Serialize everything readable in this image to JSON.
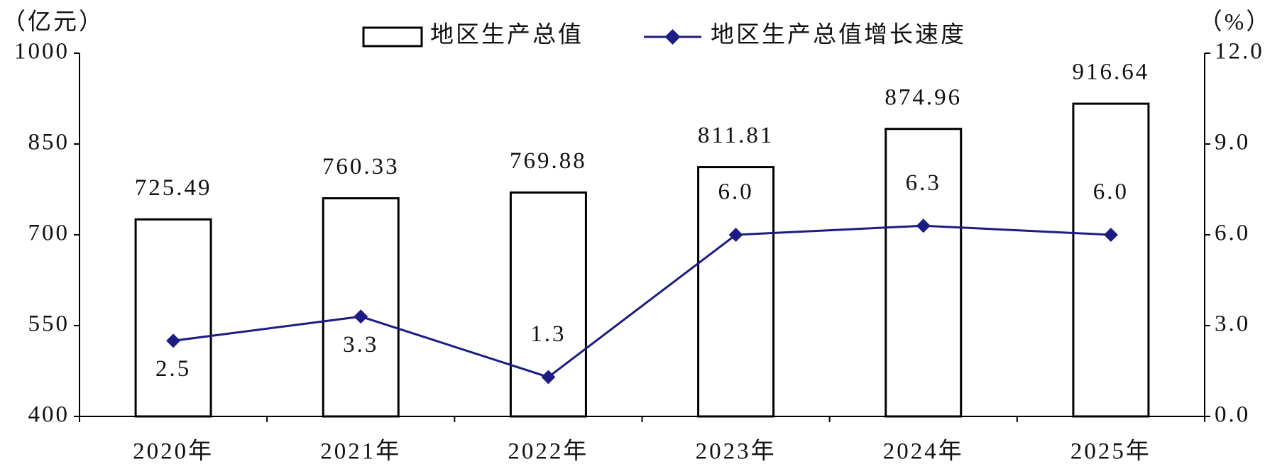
{
  "chart_data": {
    "type": "bar",
    "y_label": "（亿元）",
    "y2_label": "（%）",
    "categories": [
      "2020年",
      "2021年",
      "2022年",
      "2023年",
      "2024年",
      "2025年"
    ],
    "series": [
      {
        "name": "地区生产总值",
        "type": "bar",
        "color": "#ffffff",
        "values": [
          725.49,
          760.33,
          769.88,
          811.81,
          874.96,
          916.64
        ]
      },
      {
        "name": "地区生产总值增长速度",
        "type": "line",
        "axis": "y2",
        "color": "#1c1c84",
        "values": [
          2.5,
          3.3,
          1.3,
          6.0,
          6.3,
          6.0
        ],
        "value_labels": [
          "2.5",
          "3.3",
          "1.3",
          "6.0",
          "6.3",
          "6.0"
        ]
      }
    ],
    "ylim": [
      400,
      1000
    ],
    "yticks": [
      400,
      550,
      700,
      850,
      1000
    ],
    "y2lim": [
      0,
      12
    ],
    "y2ticks": [
      {
        "value": 0,
        "label": "0.0"
      },
      {
        "value": 3,
        "label": "3.0"
      },
      {
        "value": 6,
        "label": "6.0"
      },
      {
        "value": 9,
        "label": "9.0"
      },
      {
        "value": 12,
        "label": "12.0"
      }
    ],
    "grid": false
  }
}
